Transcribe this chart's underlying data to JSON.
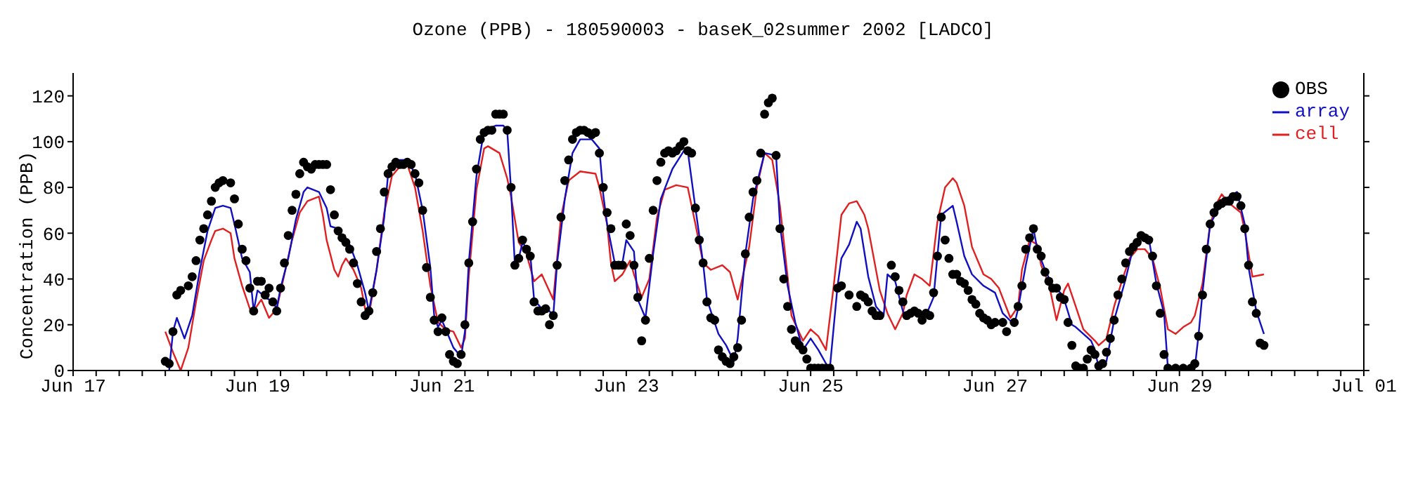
{
  "chart_data": {
    "type": "line",
    "title": "Ozone (PPB) - 180590003 - baseK_02summer 2002 [LADCO]",
    "ylabel": "Concentration (PPB)",
    "legend": "top right",
    "xlim": [
      "2002-06-17",
      "2002-07-01"
    ],
    "ylim": [
      0,
      130
    ],
    "yticks": [
      0,
      20,
      40,
      60,
      80,
      100,
      120
    ],
    "xticks": [
      {
        "value": "2002-06-17",
        "label": "Jun 17"
      },
      {
        "value": "2002-06-17T06:00",
        "label": null
      },
      {
        "value": "2002-06-17T12:00",
        "label": null
      },
      {
        "value": "2002-06-17T18:00",
        "label": null
      },
      {
        "value": "2002-06-18",
        "label": null
      },
      {
        "value": "2002-06-18T06:00",
        "label": null
      },
      {
        "value": "2002-06-18T12:00",
        "label": null
      },
      {
        "value": "2002-06-18T18:00",
        "label": null
      },
      {
        "value": "2002-06-19",
        "label": "Jun 19"
      },
      {
        "value": "2002-06-19T06:00",
        "label": null
      },
      {
        "value": "2002-06-19T12:00",
        "label": null
      },
      {
        "value": "2002-06-19T18:00",
        "label": null
      },
      {
        "value": "2002-06-20",
        "label": null
      },
      {
        "value": "2002-06-20T06:00",
        "label": null
      },
      {
        "value": "2002-06-20T12:00",
        "label": null
      },
      {
        "value": "2002-06-20T18:00",
        "label": null
      },
      {
        "value": "2002-06-21",
        "label": "Jun 21"
      },
      {
        "value": "2002-06-21T06:00",
        "label": null
      },
      {
        "value": "2002-06-21T12:00",
        "label": null
      },
      {
        "value": "2002-06-21T18:00",
        "label": null
      },
      {
        "value": "2002-06-22",
        "label": null
      },
      {
        "value": "2002-06-22T06:00",
        "label": null
      },
      {
        "value": "2002-06-22T12:00",
        "label": null
      },
      {
        "value": "2002-06-22T18:00",
        "label": null
      },
      {
        "value": "2002-06-23",
        "label": "Jun 23"
      },
      {
        "value": "2002-06-23T06:00",
        "label": null
      },
      {
        "value": "2002-06-23T12:00",
        "label": null
      },
      {
        "value": "2002-06-23T18:00",
        "label": null
      },
      {
        "value": "2002-06-24",
        "label": null
      },
      {
        "value": "2002-06-24T06:00",
        "label": null
      },
      {
        "value": "2002-06-24T12:00",
        "label": null
      },
      {
        "value": "2002-06-24T18:00",
        "label": null
      },
      {
        "value": "2002-06-25",
        "label": "Jun 25"
      },
      {
        "value": "2002-06-25T06:00",
        "label": null
      },
      {
        "value": "2002-06-25T12:00",
        "label": null
      },
      {
        "value": "2002-06-25T18:00",
        "label": null
      },
      {
        "value": "2002-06-26",
        "label": null
      },
      {
        "value": "2002-06-26T06:00",
        "label": null
      },
      {
        "value": "2002-06-26T12:00",
        "label": null
      },
      {
        "value": "2002-06-26T18:00",
        "label": null
      },
      {
        "value": "2002-06-27",
        "label": "Jun 27"
      },
      {
        "value": "2002-06-27T06:00",
        "label": null
      },
      {
        "value": "2002-06-27T12:00",
        "label": null
      },
      {
        "value": "2002-06-27T18:00",
        "label": null
      },
      {
        "value": "2002-06-28",
        "label": null
      },
      {
        "value": "2002-06-28T06:00",
        "label": null
      },
      {
        "value": "2002-06-28T12:00",
        "label": null
      },
      {
        "value": "2002-06-28T18:00",
        "label": null
      },
      {
        "value": "2002-06-29",
        "label": "Jun 29"
      },
      {
        "value": "2002-06-29T06:00",
        "label": null
      },
      {
        "value": "2002-06-29T12:00",
        "label": null
      },
      {
        "value": "2002-06-29T18:00",
        "label": null
      },
      {
        "value": "2002-06-30",
        "label": null
      },
      {
        "value": "2002-06-30T06:00",
        "label": null
      },
      {
        "value": "2002-06-30T12:00",
        "label": null
      },
      {
        "value": "2002-06-30T18:00",
        "label": null
      },
      {
        "value": "2002-07-01",
        "label": "Jul 01"
      }
    ],
    "series": [
      {
        "name": "OBS",
        "type": "scatter",
        "marker": "circle",
        "color": "#000000",
        "x": [
          "2002-06-18T00:00",
          "2002-06-18T01:00",
          "2002-06-18T02:00",
          "2002-06-18T03:00",
          "2002-06-18T04:00",
          "2002-06-18T06:00",
          "2002-06-18T07:00",
          "2002-06-18T08:00",
          "2002-06-18T09:00",
          "2002-06-18T10:00",
          "2002-06-18T11:00",
          "2002-06-18T12:00",
          "2002-06-18T13:00",
          "2002-06-18T14:00",
          "2002-06-18T15:00",
          "2002-06-18T17:00",
          "2002-06-18T18:00",
          "2002-06-18T19:00",
          "2002-06-18T20:00",
          "2002-06-18T21:00",
          "2002-06-18T22:00",
          "2002-06-18T23:00",
          "2002-06-19T00:00",
          "2002-06-19T01:00",
          "2002-06-19T02:00",
          "2002-06-19T03:00",
          "2002-06-19T04:00",
          "2002-06-19T05:00",
          "2002-06-19T06:00",
          "2002-06-19T07:00",
          "2002-06-19T08:00",
          "2002-06-19T09:00",
          "2002-06-19T10:00",
          "2002-06-19T11:00",
          "2002-06-19T12:00",
          "2002-06-19T13:00",
          "2002-06-19T14:00",
          "2002-06-19T15:00",
          "2002-06-19T16:00",
          "2002-06-19T17:00",
          "2002-06-19T18:00",
          "2002-06-19T19:00",
          "2002-06-19T20:00",
          "2002-06-19T21:00",
          "2002-06-19T22:00",
          "2002-06-19T23:00",
          "2002-06-20T00:00",
          "2002-06-20T01:00",
          "2002-06-20T02:00",
          "2002-06-20T03:00",
          "2002-06-20T04:00",
          "2002-06-20T05:00",
          "2002-06-20T06:00",
          "2002-06-20T07:00",
          "2002-06-20T08:00",
          "2002-06-20T09:00",
          "2002-06-20T10:00",
          "2002-06-20T11:00",
          "2002-06-20T12:00",
          "2002-06-20T13:00",
          "2002-06-20T14:00",
          "2002-06-20T15:00",
          "2002-06-20T16:00",
          "2002-06-20T17:00",
          "2002-06-20T18:00",
          "2002-06-20T19:00",
          "2002-06-20T20:00",
          "2002-06-20T21:00",
          "2002-06-20T22:00",
          "2002-06-20T23:00",
          "2002-06-21T00:00",
          "2002-06-21T01:00",
          "2002-06-21T02:00",
          "2002-06-21T03:00",
          "2002-06-21T04:00",
          "2002-06-21T05:00",
          "2002-06-21T06:00",
          "2002-06-21T07:00",
          "2002-06-21T08:00",
          "2002-06-21T09:00",
          "2002-06-21T10:00",
          "2002-06-21T11:00",
          "2002-06-21T12:00",
          "2002-06-21T13:00",
          "2002-06-21T14:00",
          "2002-06-21T15:00",
          "2002-06-21T16:00",
          "2002-06-21T17:00",
          "2002-06-21T18:00",
          "2002-06-21T19:00",
          "2002-06-21T20:00",
          "2002-06-21T21:00",
          "2002-06-21T22:00",
          "2002-06-21T23:00",
          "2002-06-22T00:00",
          "2002-06-22T01:00",
          "2002-06-22T02:00",
          "2002-06-22T03:00",
          "2002-06-22T04:00",
          "2002-06-22T05:00",
          "2002-06-22T06:00",
          "2002-06-22T07:00",
          "2002-06-22T08:00",
          "2002-06-22T09:00",
          "2002-06-22T10:00",
          "2002-06-22T11:00",
          "2002-06-22T12:00",
          "2002-06-22T13:00",
          "2002-06-22T14:00",
          "2002-06-22T15:00",
          "2002-06-22T16:00",
          "2002-06-22T17:00",
          "2002-06-22T18:00",
          "2002-06-22T19:00",
          "2002-06-22T20:00",
          "2002-06-22T21:00",
          "2002-06-22T22:00",
          "2002-06-22T23:00",
          "2002-06-23T00:00",
          "2002-06-23T01:00",
          "2002-06-23T02:00",
          "2002-06-23T03:00",
          "2002-06-23T04:00",
          "2002-06-23T05:00",
          "2002-06-23T06:00",
          "2002-06-23T07:00",
          "2002-06-23T08:00",
          "2002-06-23T09:00",
          "2002-06-23T10:00",
          "2002-06-23T11:00",
          "2002-06-23T12:00",
          "2002-06-23T13:00",
          "2002-06-23T14:00",
          "2002-06-23T15:00",
          "2002-06-23T16:00",
          "2002-06-23T17:00",
          "2002-06-23T18:00",
          "2002-06-23T19:00",
          "2002-06-23T20:00",
          "2002-06-23T21:00",
          "2002-06-23T22:00",
          "2002-06-23T23:00",
          "2002-06-24T00:00",
          "2002-06-24T01:00",
          "2002-06-24T02:00",
          "2002-06-24T03:00",
          "2002-06-24T04:00",
          "2002-06-24T05:00",
          "2002-06-24T06:00",
          "2002-06-24T07:00",
          "2002-06-24T08:00",
          "2002-06-24T09:00",
          "2002-06-24T10:00",
          "2002-06-24T11:00",
          "2002-06-24T12:00",
          "2002-06-24T13:00",
          "2002-06-24T14:00",
          "2002-06-24T15:00",
          "2002-06-24T16:00",
          "2002-06-24T17:00",
          "2002-06-24T18:00",
          "2002-06-24T19:00",
          "2002-06-24T20:00",
          "2002-06-24T21:00",
          "2002-06-24T22:00",
          "2002-06-24T23:00",
          "2002-06-25T00:00",
          "2002-06-25T01:00",
          "2002-06-25T02:00",
          "2002-06-25T03:00",
          "2002-06-25T04:00",
          "2002-06-25T05:00",
          "2002-06-25T07:00",
          "2002-06-25T08:00",
          "2002-06-25T10:00",
          "2002-06-25T12:00",
          "2002-06-25T13:00",
          "2002-06-25T14:00",
          "2002-06-25T15:00",
          "2002-06-25T16:00",
          "2002-06-25T17:00",
          "2002-06-25T18:00",
          "2002-06-25T21:00",
          "2002-06-25T22:00",
          "2002-06-25T23:00",
          "2002-06-26T00:00",
          "2002-06-26T01:00",
          "2002-06-26T02:00",
          "2002-06-26T03:00",
          "2002-06-26T04:00",
          "2002-06-26T05:00",
          "2002-06-26T06:00",
          "2002-06-26T07:00",
          "2002-06-26T08:00",
          "2002-06-26T09:00",
          "2002-06-26T10:00",
          "2002-06-26T11:00",
          "2002-06-26T12:00",
          "2002-06-26T13:00",
          "2002-06-26T14:00",
          "2002-06-26T15:00",
          "2002-06-26T16:00",
          "2002-06-26T17:00",
          "2002-06-26T18:00",
          "2002-06-26T19:00",
          "2002-06-26T20:00",
          "2002-06-26T21:00",
          "2002-06-26T22:00",
          "2002-06-26T23:00",
          "2002-06-27T00:00",
          "2002-06-27T02:00",
          "2002-06-27T03:00",
          "2002-06-27T05:00",
          "2002-06-27T06:00",
          "2002-06-27T07:00",
          "2002-06-27T08:00",
          "2002-06-27T09:00",
          "2002-06-27T10:00",
          "2002-06-27T11:00",
          "2002-06-27T12:00",
          "2002-06-27T13:00",
          "2002-06-27T14:00",
          "2002-06-27T15:00",
          "2002-06-27T16:00",
          "2002-06-27T17:00",
          "2002-06-27T18:00",
          "2002-06-27T19:00",
          "2002-06-27T20:00",
          "2002-06-27T21:00",
          "2002-06-27T22:00",
          "2002-06-27T23:00",
          "2002-06-28T00:00",
          "2002-06-28T01:00",
          "2002-06-28T02:00",
          "2002-06-28T03:00",
          "2002-06-28T04:00",
          "2002-06-28T05:00",
          "2002-06-28T06:00",
          "2002-06-28T07:00",
          "2002-06-28T08:00",
          "2002-06-28T09:00",
          "2002-06-28T10:00",
          "2002-06-28T11:00",
          "2002-06-28T12:00",
          "2002-06-28T13:00",
          "2002-06-28T14:00",
          "2002-06-28T15:00",
          "2002-06-28T16:00",
          "2002-06-28T17:00",
          "2002-06-28T18:00",
          "2002-06-28T19:00",
          "2002-06-28T20:00",
          "2002-06-28T21:00",
          "2002-06-28T23:00",
          "2002-06-29T01:00",
          "2002-06-29T03:00",
          "2002-06-29T04:00",
          "2002-06-29T05:00",
          "2002-06-29T06:00",
          "2002-06-29T07:00",
          "2002-06-29T08:00",
          "2002-06-29T09:00",
          "2002-06-29T10:00",
          "2002-06-29T11:00",
          "2002-06-29T12:00",
          "2002-06-29T13:00",
          "2002-06-29T14:00",
          "2002-06-29T15:00",
          "2002-06-29T16:00",
          "2002-06-29T17:00",
          "2002-06-29T18:00",
          "2002-06-29T19:00",
          "2002-06-29T20:00",
          "2002-06-29T21:00",
          "2002-06-29T22:00"
        ],
        "values": [
          4,
          3,
          17,
          33,
          35,
          37,
          41,
          48,
          57,
          62,
          68,
          74,
          80,
          82,
          83,
          82,
          75,
          64,
          53,
          48,
          36,
          26,
          39,
          39,
          33,
          36,
          30,
          26,
          36,
          47,
          59,
          70,
          77,
          86,
          91,
          89,
          88,
          90,
          90,
          90,
          90,
          79,
          68,
          61,
          58,
          56,
          53,
          47,
          38,
          30,
          24,
          26,
          34,
          52,
          62,
          78,
          86,
          89,
          91,
          90,
          90,
          91,
          90,
          86,
          82,
          70,
          45,
          32,
          22,
          17,
          23,
          17,
          7,
          4,
          3,
          7,
          20,
          47,
          65,
          88,
          101,
          104,
          105,
          105,
          112,
          112,
          112,
          105,
          80,
          46,
          49,
          57,
          53,
          50,
          30,
          26,
          26,
          27,
          20,
          24,
          46,
          67,
          83,
          92,
          101,
          104,
          105,
          105,
          104,
          103,
          104,
          95,
          80,
          69,
          62,
          46,
          46,
          46,
          64,
          59,
          46,
          32,
          13,
          22,
          49,
          70,
          83,
          91,
          95,
          96,
          95,
          96,
          98,
          100,
          96,
          95,
          71,
          57,
          47,
          30,
          23,
          22,
          9,
          6,
          4,
          3,
          6,
          10,
          22,
          51,
          67,
          78,
          83,
          95,
          112,
          117,
          119,
          94,
          62,
          40,
          28,
          18,
          13,
          11,
          9,
          5,
          1,
          1,
          1,
          1,
          1,
          1,
          36,
          37,
          33,
          28,
          33,
          32,
          30,
          26,
          24,
          24,
          46,
          41,
          35,
          30,
          24,
          25,
          26,
          25,
          22,
          25,
          24,
          34,
          50,
          67,
          57,
          49,
          42,
          42,
          39,
          38,
          35,
          31,
          29,
          25,
          23,
          22,
          20,
          21,
          21,
          17,
          21,
          28,
          37,
          53,
          58,
          62,
          53,
          50,
          43,
          39,
          36,
          36,
          32,
          31,
          21,
          11,
          2,
          1,
          1,
          5,
          9,
          7,
          2,
          3,
          8,
          14,
          22,
          33,
          40,
          47,
          52,
          54,
          56,
          59,
          58,
          57,
          50,
          37,
          25,
          7,
          1,
          1,
          1,
          1,
          3,
          15,
          33,
          53,
          64,
          69,
          72,
          73,
          74,
          74,
          76,
          76,
          72,
          62,
          46,
          30,
          25,
          12,
          11
        ]
      },
      {
        "name": "cell",
        "type": "line",
        "marker": "none",
        "color": "#e02020",
        "x": [
          "2002-06-18T00:00",
          "2002-06-18T02:00",
          "2002-06-18T04:00",
          "2002-06-18T06:00",
          "2002-06-18T08:00",
          "2002-06-18T10:00",
          "2002-06-18T12:00",
          "2002-06-18T13:00",
          "2002-06-18T15:00",
          "2002-06-18T17:00",
          "2002-06-18T18:00",
          "2002-06-18T20:00",
          "2002-06-18T22:00",
          "2002-06-18T23:00",
          "2002-06-19T01:00",
          "2002-06-19T02:00",
          "2002-06-19T03:00",
          "2002-06-19T05:00",
          "2002-06-19T07:00",
          "2002-06-19T09:00",
          "2002-06-19T11:00",
          "2002-06-19T13:00",
          "2002-06-19T16:00",
          "2002-06-19T17:00",
          "2002-06-19T18:00",
          "2002-06-19T20:00",
          "2002-06-19T21:00",
          "2002-06-19T22:00",
          "2002-06-19T23:00",
          "2002-06-20T01:00",
          "2002-06-20T03:00",
          "2002-06-20T04:00",
          "2002-06-20T05:00",
          "2002-06-20T07:00",
          "2002-06-20T09:00",
          "2002-06-20T11:00",
          "2002-06-20T14:00",
          "2002-06-20T15:00",
          "2002-06-20T17:00",
          "2002-06-20T19:00",
          "2002-06-20T21:00",
          "2002-06-20T23:00",
          "2002-06-21T01:00",
          "2002-06-21T03:00",
          "2002-06-21T05:00",
          "2002-06-21T06:00",
          "2002-06-21T07:00",
          "2002-06-21T09:00",
          "2002-06-21T11:00",
          "2002-06-21T12:00",
          "2002-06-21T15:00",
          "2002-06-21T17:00",
          "2002-06-21T18:00",
          "2002-06-21T20:00",
          "2002-06-21T22:00",
          "2002-06-22T00:00",
          "2002-06-22T02:00",
          "2002-06-22T05:00",
          "2002-06-22T07:00",
          "2002-06-22T09:00",
          "2002-06-22T12:00",
          "2002-06-22T16:00",
          "2002-06-22T17:00",
          "2002-06-22T19:00",
          "2002-06-22T20:00",
          "2002-06-22T21:00",
          "2002-06-22T23:00",
          "2002-06-23T01:00",
          "2002-06-23T02:00",
          "2002-06-23T04:00",
          "2002-06-23T06:00",
          "2002-06-23T08:00",
          "2002-06-23T10:00",
          "2002-06-23T13:00",
          "2002-06-23T16:00",
          "2002-06-23T18:00",
          "2002-06-23T20:00",
          "2002-06-23T22:00",
          "2002-06-24T01:00",
          "2002-06-24T03:00",
          "2002-06-24T05:00",
          "2002-06-24T08:00",
          "2002-06-24T10:00",
          "2002-06-24T12:00",
          "2002-06-24T14:00",
          "2002-06-24T16:00",
          "2002-06-24T18:00",
          "2002-06-24T19:00",
          "2002-06-24T22:00",
          "2002-06-25T00:00",
          "2002-06-25T02:00",
          "2002-06-25T04:00",
          "2002-06-25T06:00",
          "2002-06-25T08:00",
          "2002-06-25T10:00",
          "2002-06-25T12:00",
          "2002-06-25T14:00",
          "2002-06-25T15:00",
          "2002-06-25T18:00",
          "2002-06-25T20:00",
          "2002-06-25T22:00",
          "2002-06-26T00:00",
          "2002-06-26T01:00",
          "2002-06-26T03:00",
          "2002-06-26T05:00",
          "2002-06-26T07:00",
          "2002-06-26T09:00",
          "2002-06-26T11:00",
          "2002-06-26T13:00",
          "2002-06-26T14:00",
          "2002-06-26T16:00",
          "2002-06-26T18:00",
          "2002-06-26T20:00",
          "2002-06-26T21:00",
          "2002-06-26T23:00",
          "2002-06-27T01:00",
          "2002-06-27T04:00",
          "2002-06-27T06:00",
          "2002-06-27T07:00",
          "2002-06-27T09:00",
          "2002-06-27T11:00",
          "2002-06-27T12:00",
          "2002-06-27T14:00",
          "2002-06-27T16:00",
          "2002-06-27T18:00",
          "2002-06-27T19:00",
          "2002-06-27T21:00",
          "2002-06-27T23:00",
          "2002-06-28T02:00",
          "2002-06-28T03:00",
          "2002-06-28T05:00",
          "2002-06-28T07:00",
          "2002-06-28T09:00",
          "2002-06-28T11:00",
          "2002-06-28T13:00",
          "2002-06-28T15:00",
          "2002-06-28T17:00",
          "2002-06-28T19:00",
          "2002-06-28T21:00",
          "2002-06-28T23:00",
          "2002-06-29T01:00",
          "2002-06-29T03:00",
          "2002-06-29T04:00",
          "2002-06-29T06:00",
          "2002-06-29T08:00",
          "2002-06-29T10:00",
          "2002-06-29T11:00",
          "2002-06-29T13:00",
          "2002-06-29T16:00",
          "2002-06-29T17:00",
          "2002-06-29T19:00",
          "2002-06-29T22:00"
        ],
        "values": [
          17,
          8,
          0,
          10,
          30,
          48,
          57,
          61,
          62,
          60,
          49,
          37,
          27,
          26,
          31,
          27,
          23,
          27,
          42,
          57,
          69,
          74,
          76,
          68,
          57,
          44,
          41,
          46,
          49,
          44,
          36,
          27,
          24,
          44,
          69,
          85,
          91,
          90,
          80,
          61,
          37,
          21,
          18,
          17,
          10,
          14,
          41,
          79,
          97,
          98,
          95,
          84,
          76,
          56,
          51,
          39,
          42,
          31,
          67,
          83,
          87,
          86,
          80,
          64,
          47,
          39,
          42,
          48,
          42,
          32,
          40,
          67,
          79,
          81,
          80,
          64,
          47,
          44,
          46,
          43,
          31,
          54,
          80,
          95,
          92,
          72,
          41,
          24,
          13,
          18,
          15,
          9,
          37,
          68,
          73,
          74,
          68,
          62,
          35,
          25,
          18,
          25,
          33,
          42,
          40,
          37,
          65,
          80,
          84,
          82,
          72,
          54,
          46,
          42,
          40,
          36,
          23,
          28,
          44,
          57,
          55,
          46,
          38,
          22,
          35,
          38,
          28,
          18,
          13,
          11,
          14,
          28,
          39,
          49,
          53,
          53,
          49,
          36,
          18,
          16,
          19,
          21,
          24,
          38,
          64,
          74,
          77,
          73,
          69,
          61,
          41,
          42
        ]
      },
      {
        "name": "array",
        "type": "line",
        "marker": "none",
        "color": "#1010c0",
        "x": [
          "2002-06-18T01:00",
          "2002-06-18T02:00",
          "2002-06-18T03:00",
          "2002-06-18T05:00",
          "2002-06-18T07:00",
          "2002-06-18T09:00",
          "2002-06-18T11:00",
          "2002-06-18T13:00",
          "2002-06-18T15:00",
          "2002-06-18T17:00",
          "2002-06-18T18:00",
          "2002-06-18T20:00",
          "2002-06-18T22:00",
          "2002-06-18T23:00",
          "2002-06-19T00:00",
          "2002-06-19T02:00",
          "2002-06-19T04:00",
          "2002-06-19T05:00",
          "2002-06-19T06:00",
          "2002-06-19T08:00",
          "2002-06-19T10:00",
          "2002-06-19T12:00",
          "2002-06-19T13:00",
          "2002-06-19T16:00",
          "2002-06-19T18:00",
          "2002-06-19T19:00",
          "2002-06-19T21:00",
          "2002-06-19T22:00",
          "2002-06-20T00:00",
          "2002-06-20T02:00",
          "2002-06-20T04:00",
          "2002-06-20T05:00",
          "2002-06-20T07:00",
          "2002-06-20T09:00",
          "2002-06-20T10:00",
          "2002-06-20T13:00",
          "2002-06-20T15:00",
          "2002-06-20T17:00",
          "2002-06-20T19:00",
          "2002-06-20T21:00",
          "2002-06-20T22:00",
          "2002-06-20T23:00",
          "2002-06-21T00:00",
          "2002-06-21T02:00",
          "2002-06-21T03:00",
          "2002-06-21T05:00",
          "2002-06-21T06:00",
          "2002-06-21T07:00",
          "2002-06-21T09:00",
          "2002-06-21T11:00",
          "2002-06-21T14:00",
          "2002-06-21T16:00",
          "2002-06-21T17:00",
          "2002-06-21T18:00",
          "2002-06-21T19:00",
          "2002-06-21T20:00",
          "2002-06-21T21:00",
          "2002-06-21T23:00",
          "2002-06-22T00:00",
          "2002-06-22T02:00",
          "2002-06-22T04:00",
          "2002-06-22T05:00",
          "2002-06-22T06:00",
          "2002-06-22T08:00",
          "2002-06-22T10:00",
          "2002-06-22T12:00",
          "2002-06-22T15:00",
          "2002-06-22T17:00",
          "2002-06-22T18:00",
          "2002-06-22T19:00",
          "2002-06-22T21:00",
          "2002-06-22T23:00",
          "2002-06-23T00:00",
          "2002-06-23T02:00",
          "2002-06-23T03:00",
          "2002-06-23T05:00",
          "2002-06-23T07:00",
          "2002-06-23T09:00",
          "2002-06-23T12:00",
          "2002-06-23T15:00",
          "2002-06-23T16:00",
          "2002-06-23T18:00",
          "2002-06-23T20:00",
          "2002-06-23T21:00",
          "2002-06-23T23:00",
          "2002-06-24T00:00",
          "2002-06-24T02:00",
          "2002-06-24T04:00",
          "2002-06-24T05:00",
          "2002-06-24T07:00",
          "2002-06-24T09:00",
          "2002-06-24T12:00",
          "2002-06-24T15:00",
          "2002-06-24T16:00",
          "2002-06-24T18:00",
          "2002-06-24T20:00",
          "2002-06-24T22:00",
          "2002-06-25T00:00",
          "2002-06-25T02:00",
          "2002-06-25T04:00",
          "2002-06-25T05:00",
          "2002-06-25T07:00",
          "2002-06-25T08:00",
          "2002-06-25T10:00",
          "2002-06-25T12:00",
          "2002-06-25T13:00",
          "2002-06-25T15:00",
          "2002-06-25T17:00",
          "2002-06-25T19:00",
          "2002-06-25T20:00",
          "2002-06-25T22:00",
          "2002-06-26T00:00",
          "2002-06-26T01:00",
          "2002-06-26T04:00",
          "2002-06-26T06:00",
          "2002-06-26T08:00",
          "2002-06-26T10:00",
          "2002-06-26T13:00",
          "2002-06-26T14:00",
          "2002-06-26T16:00",
          "2002-06-26T18:00",
          "2002-06-26T21:00",
          "2002-06-27T00:00",
          "2002-06-27T02:00",
          "2002-06-27T05:00",
          "2002-06-27T06:00",
          "2002-06-27T08:00",
          "2002-06-27T10:00",
          "2002-06-27T11:00",
          "2002-06-27T13:00",
          "2002-06-27T15:00",
          "2002-06-27T17:00",
          "2002-06-27T18:00",
          "2002-06-27T20:00",
          "2002-06-27T21:00",
          "2002-06-27T23:00",
          "2002-06-28T01:00",
          "2002-06-28T02:00",
          "2002-06-28T03:00",
          "2002-06-28T05:00",
          "2002-06-28T07:00",
          "2002-06-28T10:00",
          "2002-06-28T12:00",
          "2002-06-28T14:00",
          "2002-06-28T16:00",
          "2002-06-28T18:00",
          "2002-06-28T20:00",
          "2002-06-28T21:00",
          "2002-06-28T23:00",
          "2002-06-29T04:00",
          "2002-06-29T05:00",
          "2002-06-29T06:00",
          "2002-06-29T08:00",
          "2002-06-29T10:00",
          "2002-06-29T12:00",
          "2002-06-29T15:00",
          "2002-06-29T17:00",
          "2002-06-29T18:00",
          "2002-06-29T20:00",
          "2002-06-29T22:00"
        ],
        "values": [
          0,
          17,
          23,
          14,
          24,
          44,
          61,
          71,
          72,
          71,
          64,
          49,
          43,
          26,
          35,
          32,
          30,
          27,
          36,
          49,
          66,
          78,
          80,
          78,
          71,
          63,
          62,
          58,
          55,
          46,
          34,
          26,
          44,
          67,
          86,
          92,
          92,
          86,
          70,
          45,
          24,
          19,
          22,
          14,
          10,
          6,
          17,
          47,
          85,
          105,
          107,
          107,
          105,
          79,
          46,
          49,
          56,
          51,
          31,
          27,
          26,
          24,
          47,
          75,
          95,
          101,
          101,
          97,
          77,
          64,
          47,
          47,
          57,
          52,
          31,
          23,
          51,
          75,
          88,
          96,
          96,
          71,
          47,
          31,
          21,
          16,
          11,
          4,
          14,
          51,
          75,
          95,
          94,
          64,
          37,
          21,
          9,
          14,
          9,
          3,
          1,
          37,
          49,
          55,
          65,
          62,
          41,
          28,
          24,
          42,
          39,
          26,
          23,
          25,
          24,
          32,
          68,
          72,
          65,
          50,
          42,
          37,
          34,
          25,
          20,
          27,
          46,
          62,
          53,
          44,
          37,
          34,
          31,
          20,
          19,
          16,
          13,
          9,
          1,
          4,
          22,
          40,
          54,
          60,
          58,
          38,
          25,
          1,
          0,
          1,
          16,
          34,
          64,
          70,
          75,
          78,
          64,
          45,
          26,
          16
        ]
      }
    ]
  }
}
